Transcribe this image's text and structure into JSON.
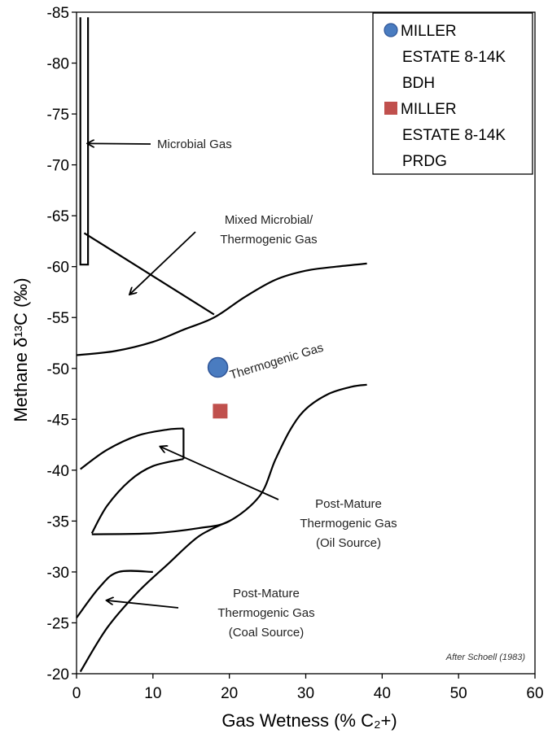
{
  "chart_data": {
    "type": "scatter",
    "xlabel": "Gas Wetness (% C₂+)",
    "ylabel": "Methane δ¹³C (‰)",
    "xlim": [
      0,
      60
    ],
    "ylim": [
      -85,
      -20
    ],
    "y_inverted": true,
    "grid": false,
    "x_ticks": [
      "0",
      "10",
      "20",
      "30",
      "40",
      "50",
      "60"
    ],
    "y_ticks": [
      "-85",
      "-80",
      "-75",
      "-70",
      "-65",
      "-60",
      "-55",
      "-50",
      "-45",
      "-40",
      "-35",
      "-30",
      "-25",
      "-20"
    ],
    "legend_placement": "top-right",
    "series": [
      {
        "name": "MILLER ESTATE 8-14K BDH",
        "legend_lines": [
          "MILLER",
          "ESTATE 8-14K",
          "BDH"
        ],
        "marker": "circle",
        "color": "#4a7cc0",
        "x": [
          18.5
        ],
        "y": [
          -50.1
        ]
      },
      {
        "name": "MILLER ESTATE 8-14K PRDG",
        "legend_lines": [
          "MILLER",
          "ESTATE 8-14K",
          "PRDG"
        ],
        "marker": "square",
        "color": "#c0504d",
        "x": [
          18.8
        ],
        "y": [
          -45.8
        ]
      }
    ],
    "field_boundaries": [
      {
        "id": "microbial-box",
        "points": [
          [
            0.5,
            -84.5
          ],
          [
            0.5,
            -60.2
          ],
          [
            1.5,
            -60.2
          ],
          [
            1.5,
            -84.5
          ]
        ]
      },
      {
        "id": "mixed-line",
        "points": [
          [
            1,
            -63.3
          ],
          [
            18,
            -55.3
          ]
        ]
      },
      {
        "id": "thermogenic-upper",
        "points": [
          [
            0,
            -51.3
          ],
          [
            5,
            -51.7
          ],
          [
            10,
            -52.6
          ],
          [
            14,
            -53.8
          ],
          [
            18,
            -55.0
          ],
          [
            22,
            -57.0
          ],
          [
            26,
            -58.7
          ],
          [
            30,
            -59.6
          ],
          [
            34,
            -60.0
          ],
          [
            38,
            -60.3
          ]
        ]
      },
      {
        "id": "thermogenic-lower",
        "points": [
          [
            2,
            -33.7
          ],
          [
            10,
            -33.8
          ],
          [
            16,
            -34.3
          ],
          [
            20,
            -35.0
          ],
          [
            24,
            -37.5
          ],
          [
            26,
            -41.0
          ],
          [
            28,
            -44.0
          ],
          [
            30,
            -46.0
          ],
          [
            33,
            -47.5
          ],
          [
            36,
            -48.2
          ],
          [
            38,
            -48.4
          ]
        ]
      },
      {
        "id": "oil-source-top",
        "points": [
          [
            0.5,
            -40.1
          ],
          [
            4,
            -42.0
          ],
          [
            8,
            -43.4
          ],
          [
            12,
            -44.0
          ],
          [
            14,
            -44.1
          ]
        ]
      },
      {
        "id": "oil-source-side",
        "points": [
          [
            14,
            -44.1
          ],
          [
            14,
            -41.1
          ]
        ]
      },
      {
        "id": "oil-source-bottom",
        "points": [
          [
            2,
            -33.8
          ],
          [
            4,
            -36.5
          ],
          [
            7,
            -39.0
          ],
          [
            10,
            -40.4
          ],
          [
            14,
            -41.1
          ]
        ]
      },
      {
        "id": "coal-source-upper",
        "points": [
          [
            0,
            -25.5
          ],
          [
            3,
            -28.5
          ],
          [
            5.5,
            -30.0
          ],
          [
            10,
            -30.0
          ]
        ]
      },
      {
        "id": "coal-source-lower",
        "points": [
          [
            0.5,
            -20.2
          ],
          [
            4,
            -24.5
          ],
          [
            8,
            -28.0
          ],
          [
            12,
            -30.8
          ],
          [
            16,
            -33.5
          ],
          [
            20,
            -35.0
          ]
        ]
      }
    ],
    "annotations": [
      {
        "lines": [
          "Microbial Gas"
        ],
        "arrow_to": [
          1.5,
          -72.1
        ]
      },
      {
        "lines": [
          "Mixed Microbial/",
          "Thermogenic Gas"
        ],
        "arrow_to": [
          7,
          -57.3
        ]
      },
      {
        "lines": [
          "Thermogenic Gas"
        ]
      },
      {
        "lines": [
          "Post-Mature",
          "Thermogenic Gas",
          "(Oil Source)"
        ],
        "arrow_to": [
          11,
          -42.3
        ]
      },
      {
        "lines": [
          "Post-Mature",
          "Thermogenic Gas",
          "(Coal Source)"
        ],
        "arrow_to": [
          4,
          -27.2
        ]
      }
    ],
    "credit": "After Schoell (1983)"
  }
}
